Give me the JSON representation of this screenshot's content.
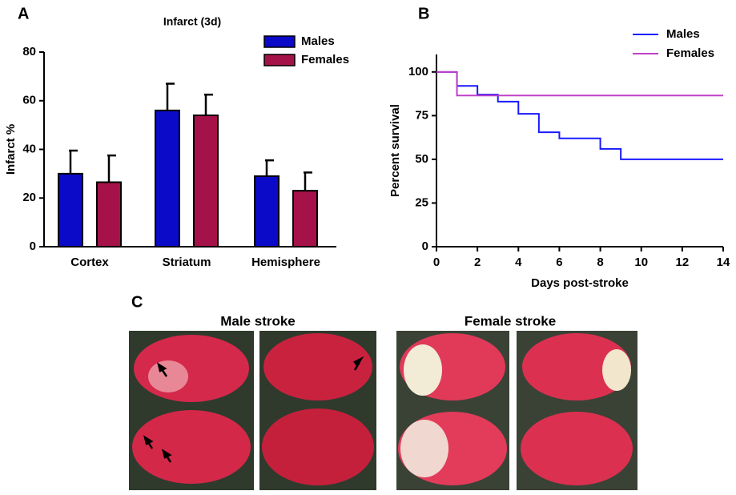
{
  "chart_data": [
    {
      "type": "bar",
      "title": "Infarct (3d)",
      "y_label": "Infarct %",
      "categories": [
        "Cortex",
        "Striatum",
        "Hemisphere"
      ],
      "series": [
        {
          "name": "Males",
          "color": "#0a0ac8",
          "values": [
            30,
            56,
            29
          ],
          "errors": [
            9.5,
            11,
            6.5
          ]
        },
        {
          "name": "Females",
          "color": "#a5124a",
          "values": [
            26.5,
            54,
            23
          ],
          "errors": [
            11,
            8.5,
            7.5
          ]
        }
      ],
      "ylim": [
        0,
        80
      ],
      "yticks": [
        0,
        20,
        40,
        60,
        80
      ],
      "legend": "top-right"
    },
    {
      "type": "line",
      "x_label": "Days post-stroke",
      "y_label": "Percent survival",
      "series": [
        {
          "name": "Males",
          "color": "#1a1aff",
          "x": [
            0,
            1,
            1,
            2,
            2,
            3,
            3,
            4,
            4,
            5,
            5,
            6,
            6,
            8,
            8,
            9,
            9,
            14
          ],
          "values": [
            100,
            100,
            92,
            92,
            87,
            87,
            83,
            83,
            76,
            76,
            65.5,
            65.5,
            62,
            62,
            56,
            56,
            50,
            50
          ]
        },
        {
          "name": "Females",
          "color": "#c040c8",
          "x": [
            0,
            1,
            1,
            14
          ],
          "values": [
            100,
            100,
            86.5,
            86.5
          ]
        }
      ],
      "xlim": [
        0,
        14
      ],
      "xticks": [
        0,
        2,
        4,
        6,
        8,
        10,
        12,
        14
      ],
      "ylim": [
        0,
        110
      ],
      "yticks": [
        0,
        25,
        50,
        75,
        100
      ],
      "legend": "top-right"
    }
  ],
  "panel_labels": [
    "A",
    "B",
    "C"
  ],
  "image_captions": [
    "Male stroke",
    "Female stroke"
  ]
}
